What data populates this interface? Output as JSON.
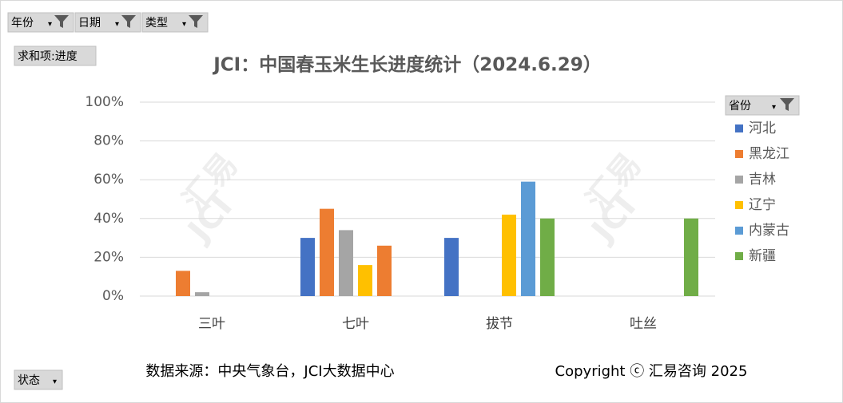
{
  "chart_data": {
    "type": "bar",
    "title": "JCI：中国春玉米生长进度统计（2024.6.29）",
    "filters": [
      "年份",
      "日期",
      "类型"
    ],
    "value_field": "求和项:进度",
    "legend_field": "省份",
    "status_field": "状态",
    "source": "数据来源：中央气象台，JCI大数据中心",
    "copyright": "Copyright ⓒ 汇易咨询 2025",
    "watermark": [
      "汇易",
      "JCI"
    ],
    "categories": [
      "三叶",
      "七叶",
      "拔节",
      "吐丝"
    ],
    "series": [
      {
        "name": "河北",
        "color": "#4472c4",
        "values": [
          null,
          30,
          30,
          null
        ]
      },
      {
        "name": "黑龙江",
        "color": "#ed7d31",
        "values": [
          13,
          45,
          null,
          null
        ]
      },
      {
        "name": "吉林",
        "color": "#a5a5a5",
        "values": [
          2,
          34,
          null,
          null
        ]
      },
      {
        "name": "辽宁",
        "color": "#ffc000",
        "values": [
          null,
          16,
          42,
          null
        ]
      },
      {
        "name": "内蒙古",
        "color": "#5b9bd5",
        "colors": [
          "#5b9bd5",
          "#ed7d31",
          "#5b9bd5",
          "#5b9bd5"
        ],
        "values": [
          null,
          26,
          59,
          null
        ]
      },
      {
        "name": "新疆",
        "color": "#70ad47",
        "values": [
          null,
          null,
          40,
          40
        ]
      }
    ],
    "ylim": [
      0,
      100
    ],
    "yticks": [
      {
        "value": 0,
        "label": "0%"
      },
      {
        "value": 20,
        "label": "20%"
      },
      {
        "value": 40,
        "label": "40%"
      },
      {
        "value": 60,
        "label": "60%"
      },
      {
        "value": 80,
        "label": "80%"
      },
      {
        "value": 100,
        "label": "100%"
      }
    ],
    "grid": true,
    "legend": "right"
  }
}
